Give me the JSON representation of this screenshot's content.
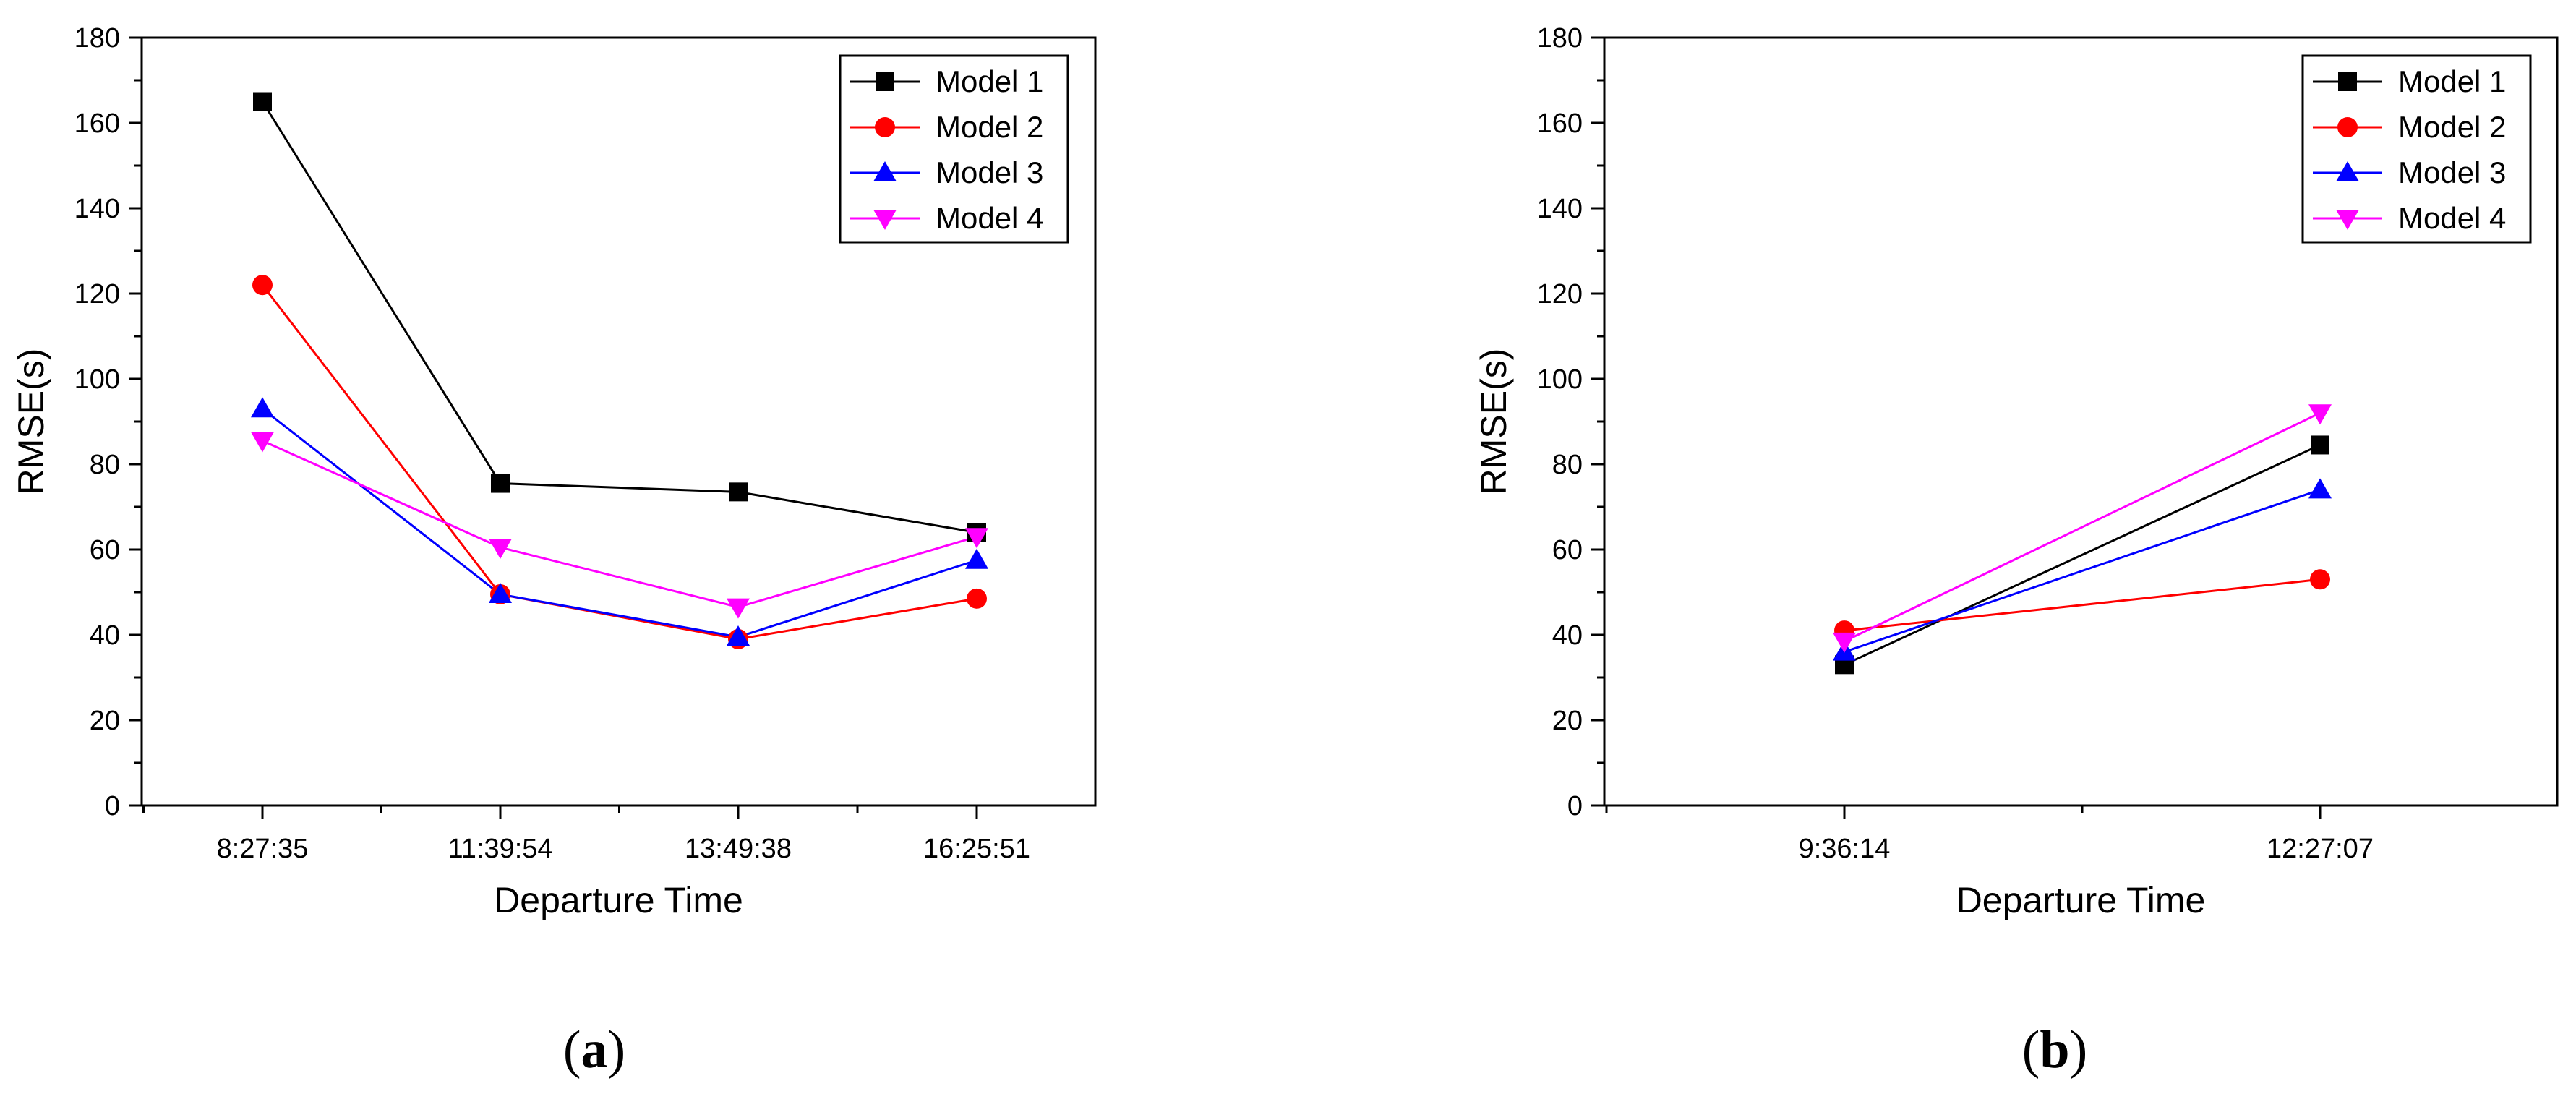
{
  "chart_data": [
    {
      "type": "line",
      "panel_label": "a",
      "categories": [
        "8:27:35",
        "11:39:54",
        "13:49:38",
        "16:25:51"
      ],
      "series": [
        {
          "name": "Model 1",
          "color": "#000000",
          "marker": "square",
          "values": [
            165,
            75.5,
            73.5,
            64
          ]
        },
        {
          "name": "Model 2",
          "color": "#ff0000",
          "marker": "circle",
          "values": [
            122,
            49.5,
            39,
            48.5
          ]
        },
        {
          "name": "Model 3",
          "color": "#0000ff",
          "marker": "triangle-up",
          "values": [
            93,
            49.5,
            39.5,
            57.5
          ]
        },
        {
          "name": "Model 4",
          "color": "#ff00ff",
          "marker": "triangle-down",
          "values": [
            85.5,
            60.5,
            46.5,
            63
          ]
        }
      ],
      "xlabel": "Departure Time",
      "ylabel": "RMSE(s)",
      "ylim": [
        0,
        180
      ],
      "yticks": [
        0,
        20,
        40,
        60,
        80,
        100,
        120,
        140,
        160,
        180
      ],
      "legend": "top-right",
      "grid": false
    },
    {
      "type": "line",
      "panel_label": "b",
      "categories": [
        "9:36:14",
        "12:27:07"
      ],
      "series": [
        {
          "name": "Model 1",
          "color": "#000000",
          "marker": "square",
          "values": [
            33,
            84.5
          ]
        },
        {
          "name": "Model 2",
          "color": "#ff0000",
          "marker": "circle",
          "values": [
            41,
            53
          ]
        },
        {
          "name": "Model 3",
          "color": "#0000ff",
          "marker": "triangle-up",
          "values": [
            36,
            74
          ]
        },
        {
          "name": "Model 4",
          "color": "#ff00ff",
          "marker": "triangle-down",
          "values": [
            38.5,
            92
          ]
        }
      ],
      "xlabel": "Departure Time",
      "ylabel": "RMSE(s)",
      "ylim": [
        0,
        180
      ],
      "yticks": [
        0,
        20,
        40,
        60,
        80,
        100,
        120,
        140,
        160,
        180
      ],
      "legend": "top-right",
      "grid": false
    }
  ]
}
